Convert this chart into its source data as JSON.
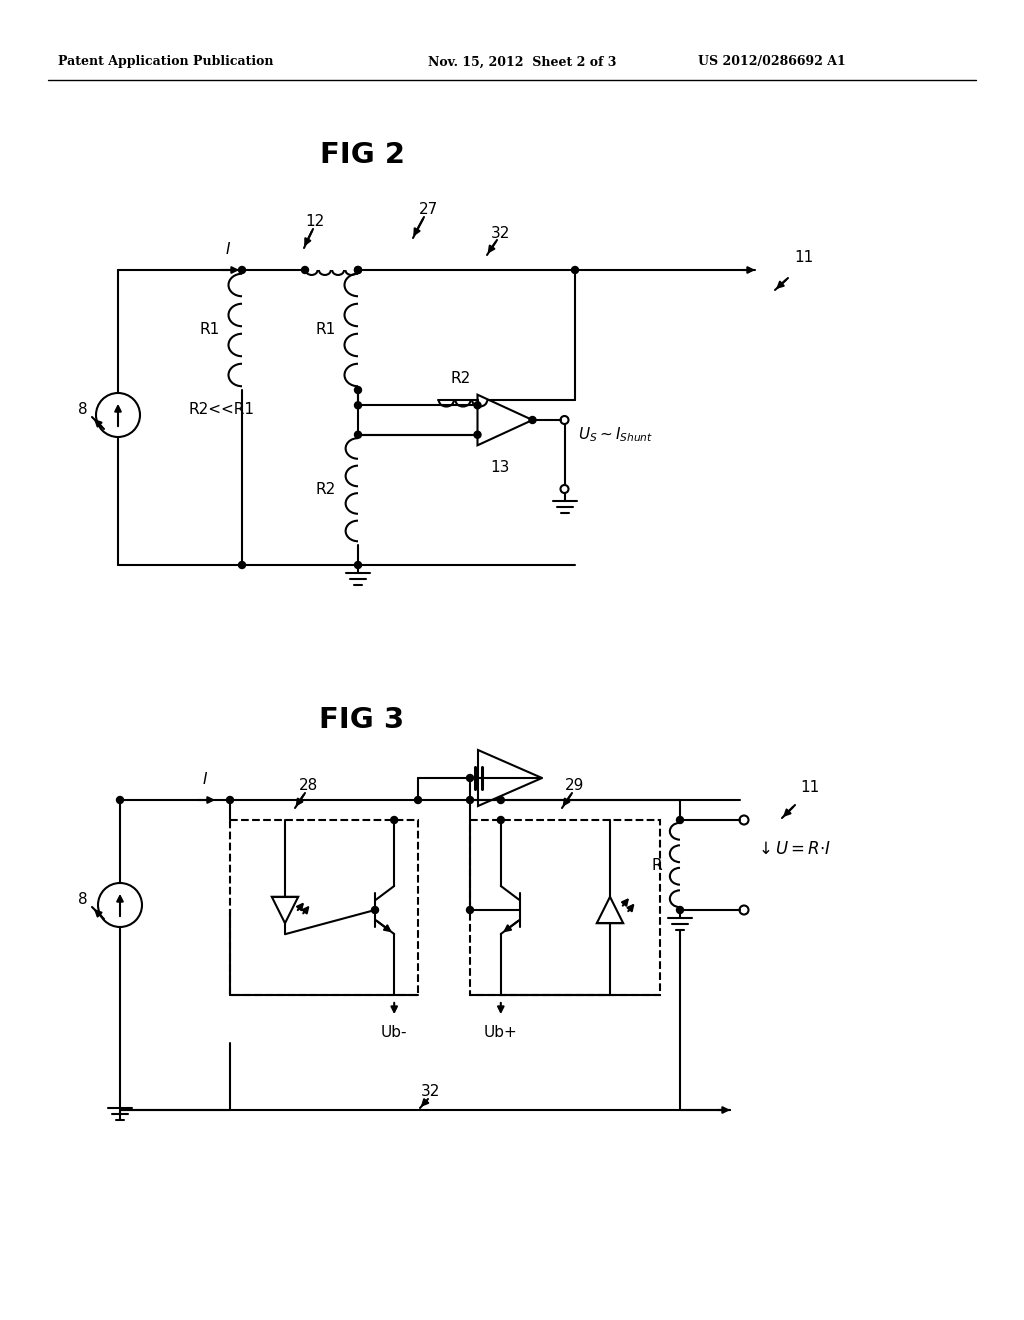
{
  "bg_color": "#ffffff",
  "header_left": "Patent Application Publication",
  "header_center": "Nov. 15, 2012  Sheet 2 of 3",
  "header_right": "US 2012/0286692 A1",
  "fig2_title": "FIG 2",
  "fig3_title": "FIG 3"
}
